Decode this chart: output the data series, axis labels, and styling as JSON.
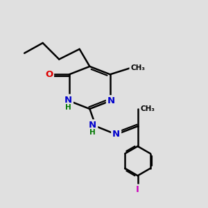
{
  "bg_color": "#e0e0e0",
  "bond_color": "#000000",
  "bond_width": 1.8,
  "atom_colors": {
    "N": "#0000cc",
    "O": "#dd0000",
    "I": "#cc00bb",
    "C": "#000000",
    "H": "#007700"
  }
}
